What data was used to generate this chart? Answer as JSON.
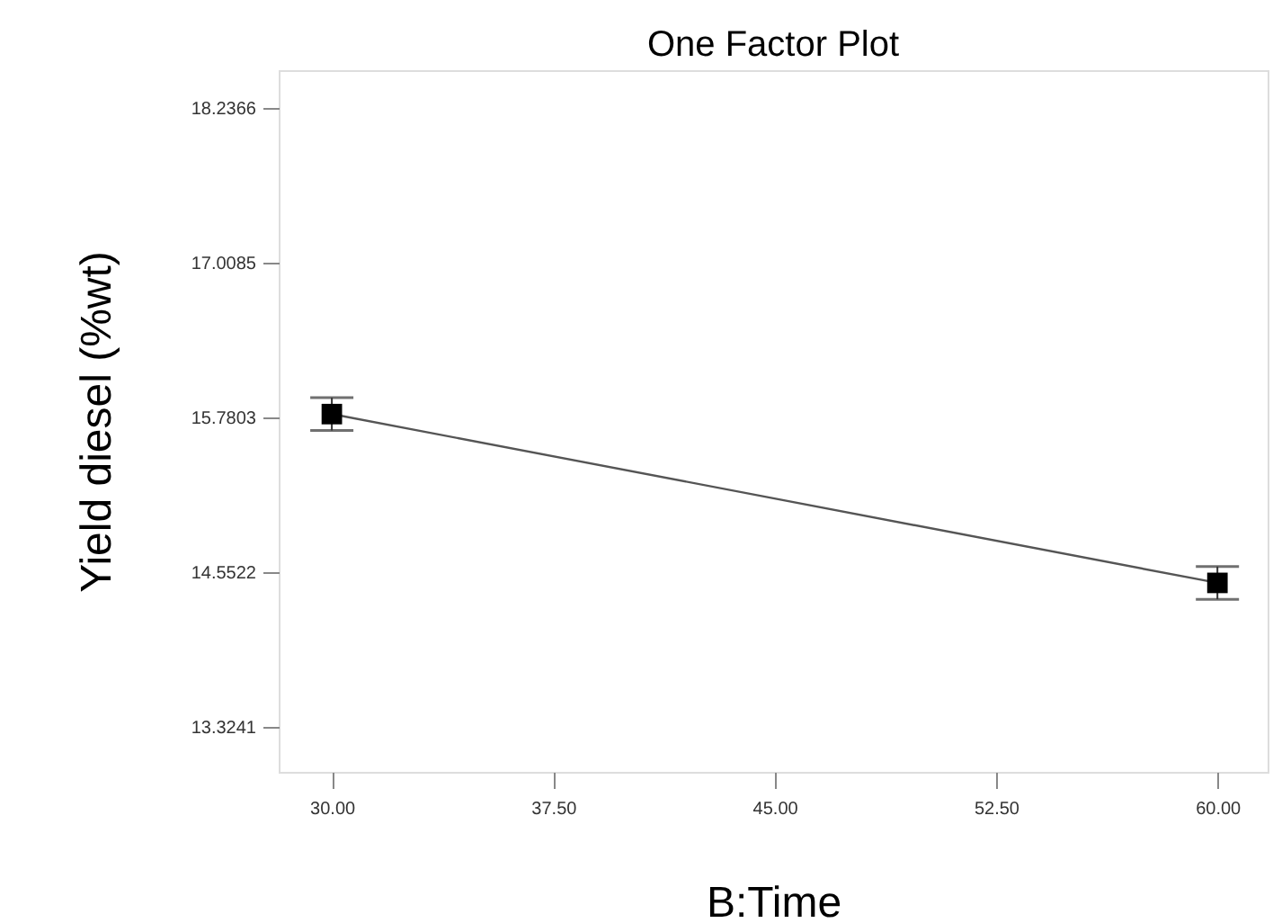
{
  "chart_data": {
    "type": "line",
    "title": "One Factor Plot",
    "xlabel": "B:Time",
    "ylabel": "Yield diesel (%wt)",
    "x": [
      30,
      60
    ],
    "series": [
      {
        "color": "#000000",
        "values": [
          15.81,
          14.47
        ],
        "errors": [
          0.13,
          0.13
        ]
      }
    ],
    "marker": "square",
    "line_style": "solid",
    "grid": false,
    "xlim": [
      28.2,
      61.7
    ],
    "ylim": [
      12.97,
      18.54
    ],
    "xticks": [
      {
        "value": 30,
        "label": "30.00"
      },
      {
        "value": 37.5,
        "label": "37.50"
      },
      {
        "value": 45,
        "label": "45.00"
      },
      {
        "value": 52.5,
        "label": "52.50"
      },
      {
        "value": 60,
        "label": "60.00"
      }
    ],
    "yticks": [
      13.3241,
      14.5522,
      15.7803,
      17.0085,
      18.2366
    ]
  }
}
